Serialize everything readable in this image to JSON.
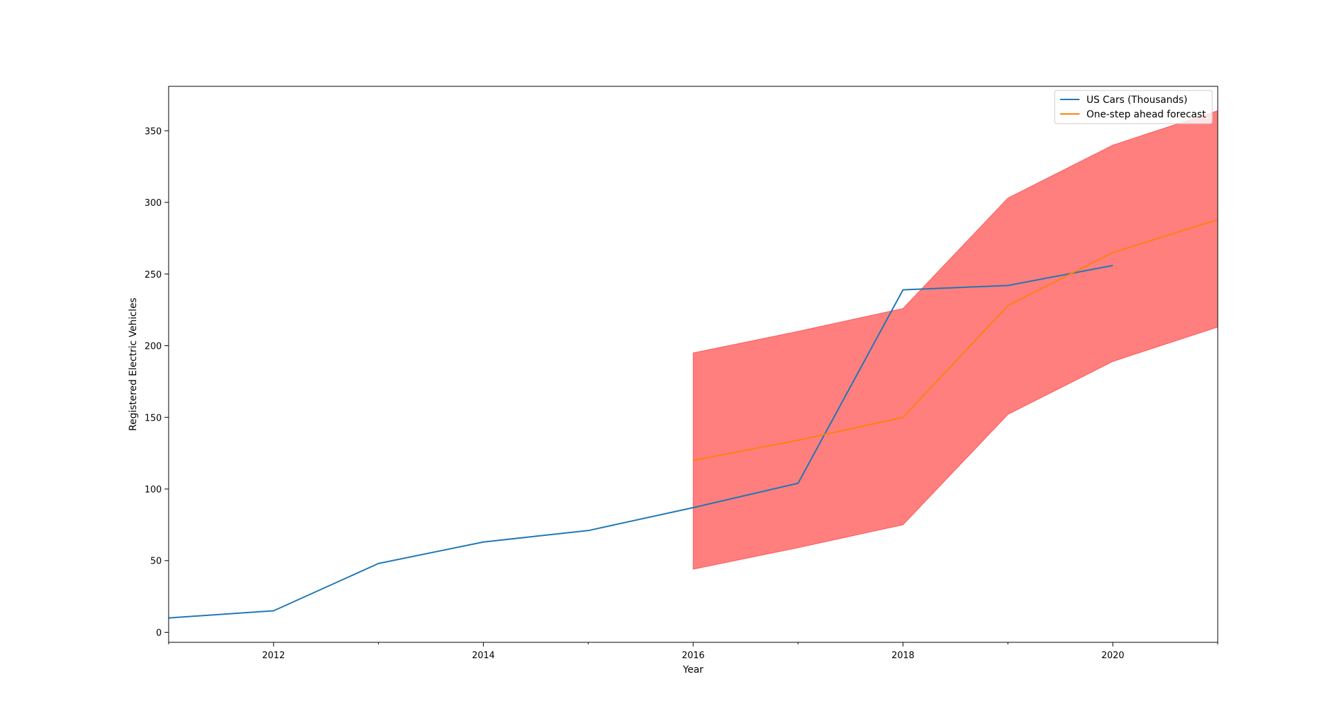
{
  "chart_data": {
    "type": "line",
    "title": "",
    "xlabel": "Year",
    "ylabel": "Registered Electric Vehicles",
    "xlim": [
      2011,
      2021
    ],
    "ylim": [
      -7,
      381
    ],
    "x_ticks": [
      2012,
      2014,
      2016,
      2018,
      2020
    ],
    "x_minor_ticks": [
      2011,
      2013,
      2015,
      2017,
      2019,
      2021
    ],
    "y_ticks": [
      0,
      50,
      100,
      150,
      200,
      250,
      300,
      350
    ],
    "grid": false,
    "legend_position": "top-right",
    "series": [
      {
        "name": "US Cars (Thousands)",
        "color": "#1f77b4",
        "x": [
          2011,
          2012,
          2013,
          2014,
          2015,
          2016,
          2017,
          2018,
          2019,
          2020
        ],
        "y": [
          10,
          15,
          48,
          63,
          71,
          87,
          104,
          239,
          242,
          256
        ]
      },
      {
        "name": "One-step ahead forecast",
        "color": "#ff7f0e",
        "x": [
          2016,
          2017,
          2018,
          2019,
          2020,
          2021
        ],
        "y": [
          120,
          134,
          150,
          228,
          265,
          288
        ]
      }
    ],
    "confidence_band": {
      "color": "#ff0000",
      "opacity": 0.5,
      "x": [
        2016,
        2017,
        2018,
        2019,
        2020,
        2021
      ],
      "lower": [
        44,
        59,
        75,
        152,
        189,
        213
      ],
      "upper": [
        195,
        210,
        226,
        303,
        340,
        364
      ]
    }
  }
}
